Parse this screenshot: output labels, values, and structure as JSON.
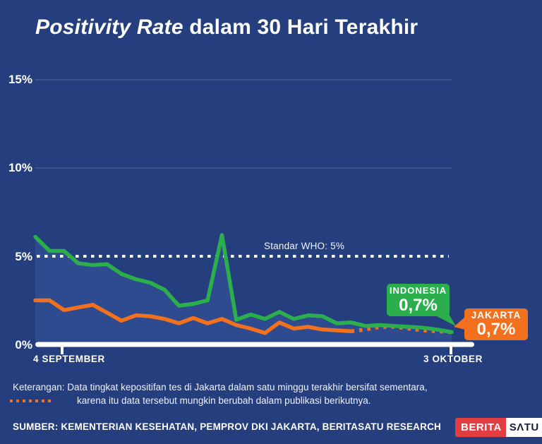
{
  "title": {
    "emphasis": "Positivity Rate",
    "rest": " dalam 30 Hari Terakhir"
  },
  "chart_data": {
    "type": "line",
    "title": "Positivity Rate dalam 30 Hari Terakhir",
    "x_axis": {
      "start_label": "4 SEPTEMBER",
      "end_label": "3 OKTOBER",
      "num_points": 30
    },
    "y_axis": {
      "tick_labels": [
        "15%",
        "10%",
        "5%",
        "0%"
      ],
      "tick_values": [
        15,
        10,
        5,
        0
      ],
      "range": [
        0,
        16.5
      ],
      "unit": "%",
      "grid": "faint horizontal at 10% and 15%"
    },
    "reference_line": {
      "label": "Standar WHO: 5%",
      "value": 5,
      "style": "white dotted"
    },
    "series": [
      {
        "name": "INDONESIA",
        "color": "#2BAF4D",
        "end_label": "0,7%",
        "area_fill": true,
        "values": [
          6.1,
          5.3,
          5.3,
          4.6,
          4.5,
          4.55,
          4.0,
          3.7,
          3.5,
          3.1,
          2.2,
          2.3,
          2.5,
          6.2,
          1.4,
          1.7,
          1.45,
          1.85,
          1.45,
          1.65,
          1.6,
          1.2,
          1.25,
          1.05,
          1.1,
          1.05,
          1.0,
          0.95,
          0.85,
          0.7
        ]
      },
      {
        "name": "JAKARTA",
        "color": "#F2711F",
        "end_label": "0,7%",
        "dotted_from_index": 22,
        "values": [
          2.5,
          2.5,
          1.95,
          2.1,
          2.25,
          1.8,
          1.35,
          1.65,
          1.6,
          1.45,
          1.2,
          1.5,
          1.2,
          1.45,
          1.1,
          0.9,
          0.65,
          1.25,
          0.9,
          1.0,
          0.85,
          0.8,
          0.75,
          0.85,
          1.0,
          1.0,
          0.9,
          0.8,
          0.75,
          0.7
        ]
      }
    ],
    "legend_position": "callout labels at line ends"
  },
  "colors": {
    "background": "#253E7D",
    "area_fill": "#2F4B8F",
    "grid": "rgba(255,255,255,0.10)",
    "axis_white": "#FFFFFF",
    "indonesia_green": "#2BAF4D",
    "jakarta_orange": "#F2711F",
    "logo_red": "#E23E42",
    "logo_text_dark": "#16213E"
  },
  "note": {
    "line1": "Keterangan: Data tingkat kepositifan tes di Jakarta dalam satu minggu terakhir bersifat sementara,",
    "line2": "karena itu data tersebut mungkin berubah dalam publikasi berikutnya."
  },
  "source": "SUMBER: KEMENTERIAN KESEHATAN, PEMPROV DKI JAKARTA, BERITASATU RESEARCH",
  "logo": {
    "first": "BERITA",
    "second": "SΛTU"
  }
}
